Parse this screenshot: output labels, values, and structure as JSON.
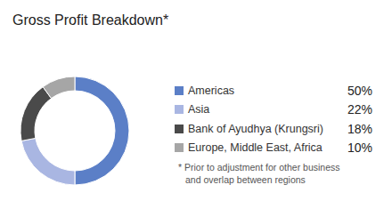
{
  "chart_data": {
    "type": "pie",
    "title": "Gross Profit Breakdown*",
    "categories": [
      "Americas",
      "Asia",
      "Bank of Ayudhya (Krungsri)",
      "Europe, Middle East, Africa"
    ],
    "values": [
      50,
      22,
      18,
      10
    ],
    "value_labels": [
      "50%",
      "22%",
      "18%",
      "10%"
    ],
    "colors": [
      "#5b7fc7",
      "#a9b6e2",
      "#4a4a4a",
      "#a6a6a6"
    ],
    "legend": "right",
    "annotation": [
      "* Prior to adjustment for other business",
      "and overlap between regions"
    ]
  }
}
